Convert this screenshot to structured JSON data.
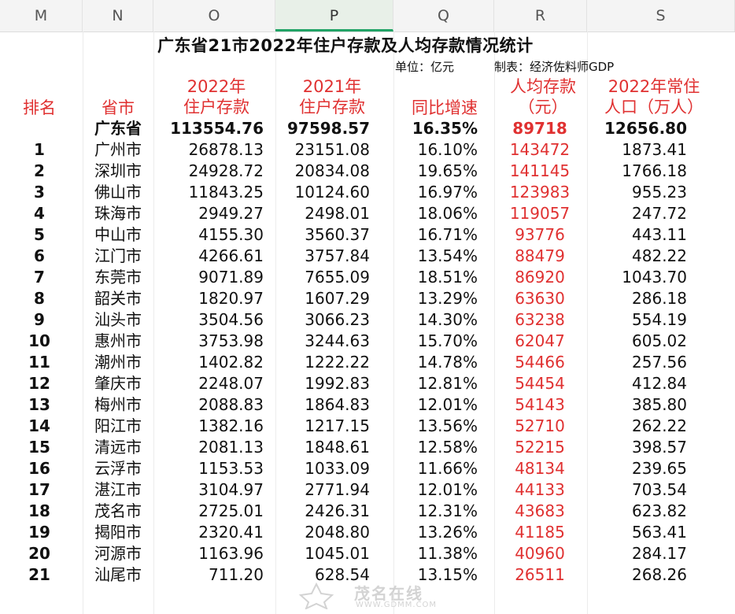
{
  "columns": [
    "M",
    "N",
    "O",
    "P",
    "Q",
    "R",
    "S"
  ],
  "title": "广东省21市2022年住户存款及人均存款情况统计",
  "unit": "单位：亿元",
  "author": "制表：经济佐料师GDP",
  "headers": {
    "rank": "排名",
    "city": "省市",
    "dep2022": [
      "2022年",
      "住户存款"
    ],
    "dep2021": [
      "2021年",
      "住户存款"
    ],
    "growth": "同比增速",
    "percap": [
      "人均存款",
      "（元）"
    ],
    "pop": [
      "2022年常住",
      "人口（万人）"
    ]
  },
  "province": {
    "name": "广东省",
    "dep2022": "113554.76",
    "dep2021": "97598.57",
    "growth": "16.35%",
    "percap": "89718",
    "pop": "12656.80"
  },
  "rows": [
    {
      "rank": "1",
      "city": "广州市",
      "dep2022": "26878.13",
      "dep2021": "23151.08",
      "growth": "16.10%",
      "percap": "143472",
      "pop": "1873.41"
    },
    {
      "rank": "2",
      "city": "深圳市",
      "dep2022": "24928.72",
      "dep2021": "20834.08",
      "growth": "19.65%",
      "percap": "141145",
      "pop": "1766.18"
    },
    {
      "rank": "3",
      "city": "佛山市",
      "dep2022": "11843.25",
      "dep2021": "10124.60",
      "growth": "16.97%",
      "percap": "123983",
      "pop": "955.23"
    },
    {
      "rank": "4",
      "city": "珠海市",
      "dep2022": "2949.27",
      "dep2021": "2498.01",
      "growth": "18.06%",
      "percap": "119057",
      "pop": "247.72"
    },
    {
      "rank": "5",
      "city": "中山市",
      "dep2022": "4155.30",
      "dep2021": "3560.37",
      "growth": "16.71%",
      "percap": "93776",
      "pop": "443.11"
    },
    {
      "rank": "6",
      "city": "江门市",
      "dep2022": "4266.61",
      "dep2021": "3757.84",
      "growth": "13.54%",
      "percap": "88479",
      "pop": "482.22"
    },
    {
      "rank": "7",
      "city": "东莞市",
      "dep2022": "9071.89",
      "dep2021": "7655.09",
      "growth": "18.51%",
      "percap": "86920",
      "pop": "1043.70"
    },
    {
      "rank": "8",
      "city": "韶关市",
      "dep2022": "1820.97",
      "dep2021": "1607.29",
      "growth": "13.29%",
      "percap": "63630",
      "pop": "286.18"
    },
    {
      "rank": "9",
      "city": "汕头市",
      "dep2022": "3504.56",
      "dep2021": "3066.23",
      "growth": "14.30%",
      "percap": "63238",
      "pop": "554.19"
    },
    {
      "rank": "10",
      "city": "惠州市",
      "dep2022": "3753.98",
      "dep2021": "3244.63",
      "growth": "15.70%",
      "percap": "62047",
      "pop": "605.02"
    },
    {
      "rank": "11",
      "city": "潮州市",
      "dep2022": "1402.82",
      "dep2021": "1222.22",
      "growth": "14.78%",
      "percap": "54466",
      "pop": "257.56"
    },
    {
      "rank": "12",
      "city": "肇庆市",
      "dep2022": "2248.07",
      "dep2021": "1992.83",
      "growth": "12.81%",
      "percap": "54454",
      "pop": "412.84"
    },
    {
      "rank": "13",
      "city": "梅州市",
      "dep2022": "2088.83",
      "dep2021": "1864.83",
      "growth": "12.01%",
      "percap": "54143",
      "pop": "385.80"
    },
    {
      "rank": "14",
      "city": "阳江市",
      "dep2022": "1382.16",
      "dep2021": "1217.15",
      "growth": "13.56%",
      "percap": "52710",
      "pop": "262.22"
    },
    {
      "rank": "15",
      "city": "清远市",
      "dep2022": "2081.13",
      "dep2021": "1848.61",
      "growth": "12.58%",
      "percap": "52215",
      "pop": "398.57"
    },
    {
      "rank": "16",
      "city": "云浮市",
      "dep2022": "1153.53",
      "dep2021": "1033.09",
      "growth": "11.66%",
      "percap": "48134",
      "pop": "239.65"
    },
    {
      "rank": "17",
      "city": "湛江市",
      "dep2022": "3104.97",
      "dep2021": "2771.94",
      "growth": "12.01%",
      "percap": "44133",
      "pop": "703.54"
    },
    {
      "rank": "18",
      "city": "茂名市",
      "dep2022": "2725.01",
      "dep2021": "2426.31",
      "growth": "12.31%",
      "percap": "43683",
      "pop": "623.82"
    },
    {
      "rank": "19",
      "city": "揭阳市",
      "dep2022": "2320.41",
      "dep2021": "2048.80",
      "growth": "13.26%",
      "percap": "41185",
      "pop": "563.41"
    },
    {
      "rank": "20",
      "city": "河源市",
      "dep2022": "1163.96",
      "dep2021": "1045.01",
      "growth": "11.38%",
      "percap": "40960",
      "pop": "284.17"
    },
    {
      "rank": "21",
      "city": "汕尾市",
      "dep2022": "711.20",
      "dep2021": "628.54",
      "growth": "13.15%",
      "percap": "26511",
      "pop": "268.26"
    }
  ],
  "watermark": {
    "brand": "茂名在线",
    "url": "WWW.GDMM.COM"
  },
  "colors": {
    "accent_red": "#e03131",
    "selected_column": "#21a366"
  }
}
